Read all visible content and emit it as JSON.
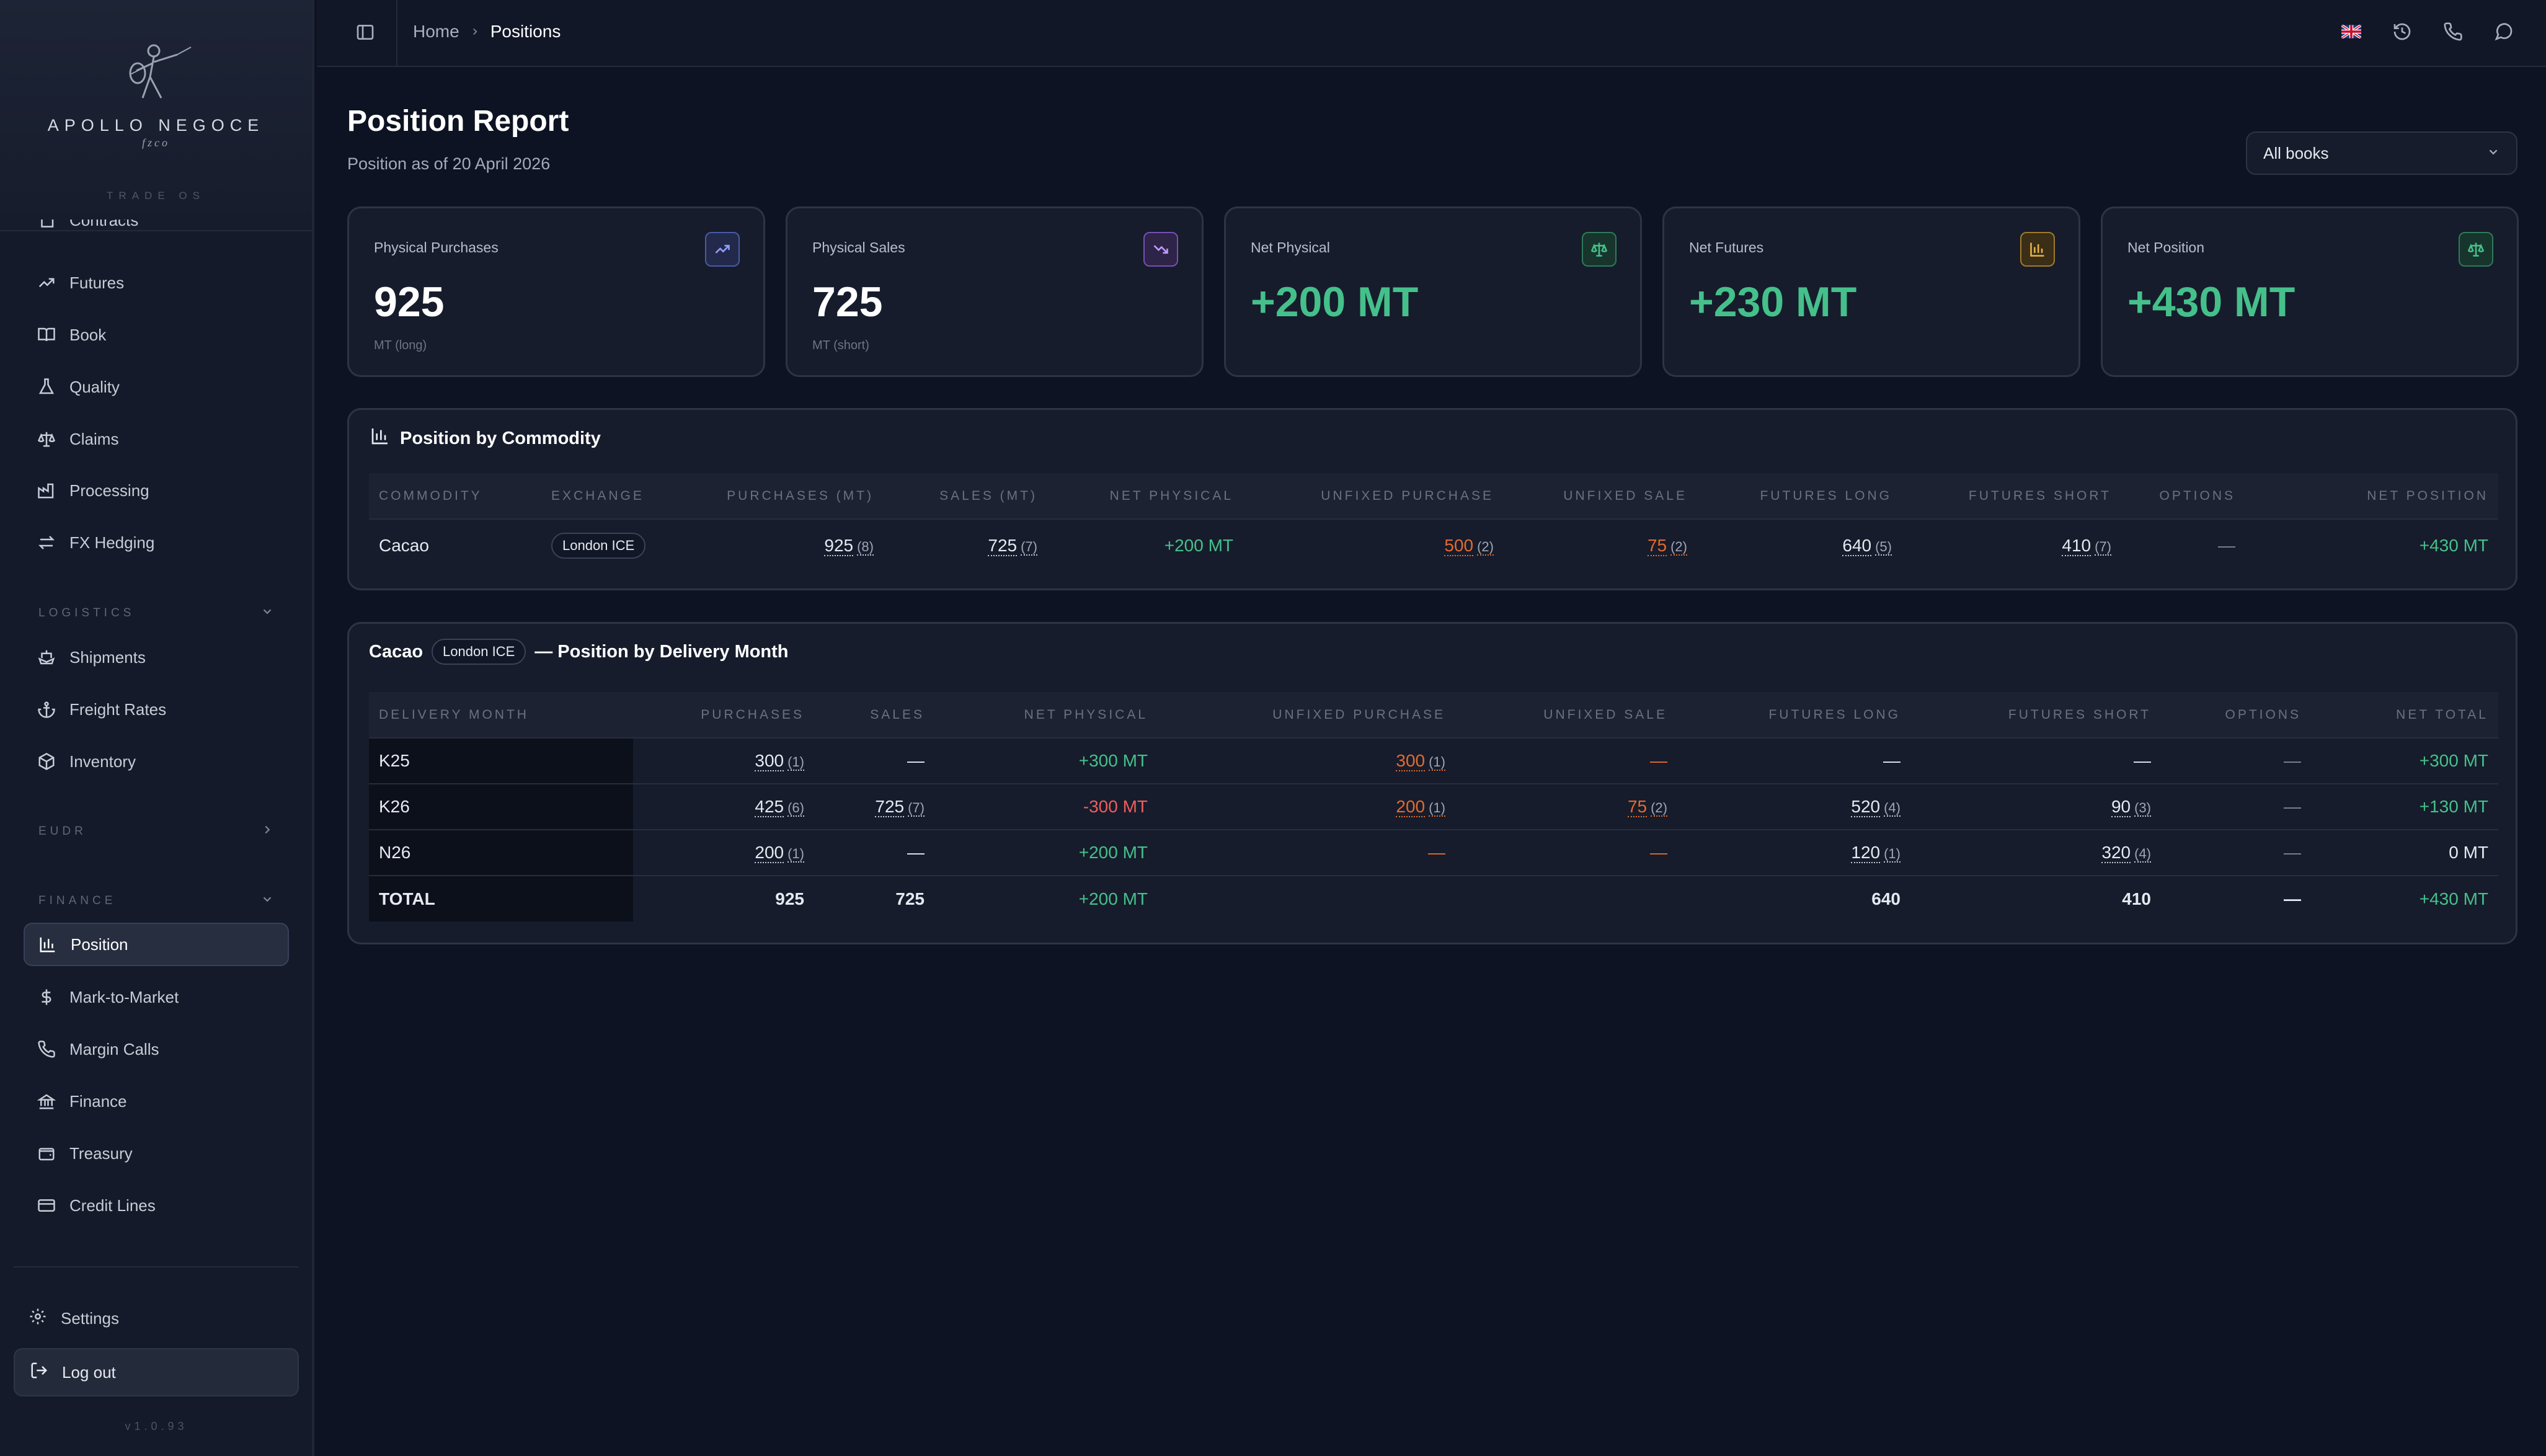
{
  "brand": {
    "name": "APOLLO NEGOCE",
    "sub": "fzco",
    "tag": "TRADE OS"
  },
  "sidebar": {
    "top_items": [
      {
        "label": "Contracts",
        "icon": "file-icon"
      },
      {
        "label": "Futures",
        "icon": "trending-up-icon"
      },
      {
        "label": "Book",
        "icon": "book-icon"
      },
      {
        "label": "Quality",
        "icon": "flask-icon"
      },
      {
        "label": "Claims",
        "icon": "scale-icon"
      },
      {
        "label": "Processing",
        "icon": "factory-icon"
      },
      {
        "label": "FX Hedging",
        "icon": "exchange-icon"
      }
    ],
    "logistics_heading": "LOGISTICS",
    "logistics_items": [
      {
        "label": "Shipments",
        "icon": "ship-icon"
      },
      {
        "label": "Freight Rates",
        "icon": "anchor-icon"
      },
      {
        "label": "Inventory",
        "icon": "package-icon"
      }
    ],
    "eudr_heading": "EUDR",
    "finance_heading": "FINANCE",
    "finance_items": [
      {
        "label": "Position",
        "icon": "bar-chart-icon",
        "active": true
      },
      {
        "label": "Mark-to-Market",
        "icon": "dollar-icon"
      },
      {
        "label": "Margin Calls",
        "icon": "phone-call-icon"
      },
      {
        "label": "Finance",
        "icon": "bank-icon"
      },
      {
        "label": "Treasury",
        "icon": "wallet-icon"
      },
      {
        "label": "Credit Lines",
        "icon": "credit-card-icon"
      }
    ],
    "settings": "Settings",
    "logout": "Log out",
    "version": "v1.0.93"
  },
  "topbar": {
    "breadcrumb_home": "Home",
    "breadcrumb_current": "Positions"
  },
  "page": {
    "title": "Position Report",
    "subtitle": "Position as of 20 April 2026",
    "book_select": "All books"
  },
  "cards": [
    {
      "label": "Physical Purchases",
      "value": "925",
      "unit": "MT (long)",
      "icon": "trending-up-icon",
      "accent": "#6f86ff"
    },
    {
      "label": "Physical Sales",
      "value": "725",
      "unit": "MT (short)",
      "icon": "trending-down-icon",
      "accent": "#b07bff"
    },
    {
      "label": "Net Physical",
      "value": "+200 MT",
      "unit": "",
      "icon": "scale-icon",
      "accent": "#45c08b"
    },
    {
      "label": "Net Futures",
      "value": "+230 MT",
      "unit": "",
      "icon": "bar-chart-icon",
      "accent": "#e0a43a"
    },
    {
      "label": "Net Position",
      "value": "+430 MT",
      "unit": "",
      "icon": "scale-icon",
      "accent": "#45c08b"
    }
  ],
  "commodity_table": {
    "title": "Position by Commodity",
    "headers": [
      "COMMODITY",
      "EXCHANGE",
      "PURCHASES (MT)",
      "SALES (MT)",
      "NET PHYSICAL",
      "UNFIXED PURCHASE",
      "UNFIXED SALE",
      "FUTURES LONG",
      "FUTURES SHORT",
      "OPTIONS",
      "NET POSITION"
    ],
    "row": {
      "commodity": "Cacao",
      "exchange": "London ICE",
      "purchases": "925",
      "purchases_count": "(8)",
      "sales": "725",
      "sales_count": "(7)",
      "net_physical": "+200 MT",
      "unfixed_purchase": "500",
      "unfixed_purchase_count": "(2)",
      "unfixed_sale": "75",
      "unfixed_sale_count": "(2)",
      "futures_long": "640",
      "futures_long_count": "(5)",
      "futures_short": "410",
      "futures_short_count": "(7)",
      "options": "—",
      "net_position": "+430 MT"
    }
  },
  "delivery_table": {
    "commodity": "Cacao",
    "exchange": "London ICE",
    "title_suffix": "— Position by Delivery Month",
    "headers": [
      "DELIVERY MONTH",
      "PURCHASES",
      "SALES",
      "NET PHYSICAL",
      "UNFIXED PURCHASE",
      "UNFIXED SALE",
      "FUTURES LONG",
      "FUTURES SHORT",
      "OPTIONS",
      "NET TOTAL"
    ],
    "rows": [
      {
        "month": "K25",
        "purchases": "300",
        "purchases_count": "(1)",
        "sales": "—",
        "sales_count": "",
        "net_physical": "+300 MT",
        "unfixed_purchase": "300",
        "unfixed_purchase_count": "(1)",
        "unfixed_sale": "—",
        "unfixed_sale_count": "",
        "futures_long": "—",
        "futures_long_count": "",
        "futures_short": "—",
        "futures_short_count": "",
        "options": "—",
        "net_total": "+300 MT"
      },
      {
        "month": "K26",
        "purchases": "425",
        "purchases_count": "(6)",
        "sales": "725",
        "sales_count": "(7)",
        "net_physical": "-300 MT",
        "unfixed_purchase": "200",
        "unfixed_purchase_count": "(1)",
        "unfixed_sale": "75",
        "unfixed_sale_count": "(2)",
        "futures_long": "520",
        "futures_long_count": "(4)",
        "futures_short": "90",
        "futures_short_count": "(3)",
        "options": "—",
        "net_total": "+130 MT"
      },
      {
        "month": "N26",
        "purchases": "200",
        "purchases_count": "(1)",
        "sales": "—",
        "sales_count": "",
        "net_physical": "+200 MT",
        "unfixed_purchase": "—",
        "unfixed_purchase_count": "",
        "unfixed_sale": "—",
        "unfixed_sale_count": "",
        "futures_long": "120",
        "futures_long_count": "(1)",
        "futures_short": "320",
        "futures_short_count": "(4)",
        "options": "—",
        "net_total": "0 MT"
      }
    ],
    "total": {
      "label": "TOTAL",
      "purchases": "925",
      "sales": "725",
      "net_physical": "+200 MT",
      "futures_long": "640",
      "futures_short": "410",
      "options": "—",
      "net_total": "+430 MT"
    }
  },
  "colors": {
    "green": "#45c08b",
    "red": "#ef5d5d",
    "orange": "#e36a2e",
    "background": "#0d1322"
  }
}
